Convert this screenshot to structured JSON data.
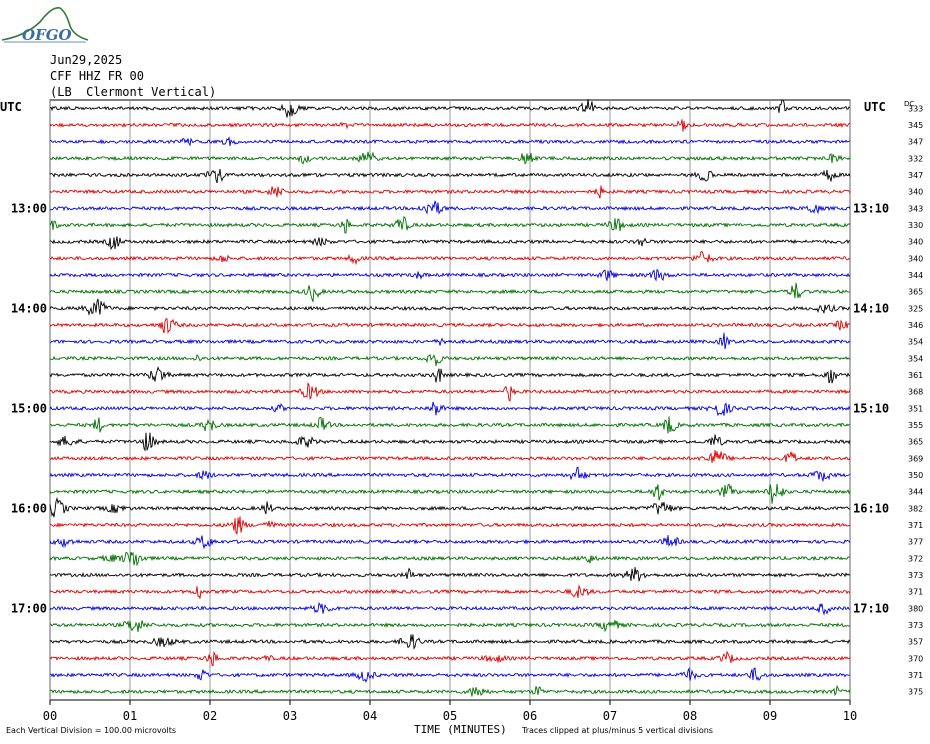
{
  "header": {
    "logo_text": "OFGO",
    "date": "Jun29,2025",
    "station": "CFF HHZ FR 00",
    "location": "(LB  Clermont Vertical)"
  },
  "left_label": "UTC",
  "right_label": "UTC",
  "dc_label": "DC",
  "footer": {
    "left_note": "Each Vertical Division =  100.00 microvolts",
    "x_title": "TIME (MINUTES)",
    "right_note": "Traces clipped at plus/minus 5 vertical divisions"
  },
  "chart_data": {
    "type": "line",
    "title": "",
    "xlabel": "TIME (MINUTES)",
    "x_ticks": [
      "00",
      "01",
      "02",
      "03",
      "04",
      "05",
      "06",
      "07",
      "08",
      "09",
      "10"
    ],
    "xlim": [
      0,
      10
    ],
    "grid": true,
    "trace_count": 36,
    "trace_colors": [
      "#000000",
      "#e00000",
      "#0000e0",
      "#007000"
    ],
    "left_hour_labels": [
      {
        "trace": 6,
        "label": "13:00"
      },
      {
        "trace": 12,
        "label": "14:00"
      },
      {
        "trace": 18,
        "label": "15:00"
      },
      {
        "trace": 24,
        "label": "16:00"
      },
      {
        "trace": 30,
        "label": "17:00"
      }
    ],
    "right_hour_labels": [
      {
        "trace": 6,
        "label": "13:10"
      },
      {
        "trace": 12,
        "label": "14:10"
      },
      {
        "trace": 18,
        "label": "15:10"
      },
      {
        "trace": 24,
        "label": "16:10"
      },
      {
        "trace": 30,
        "label": "17:10"
      }
    ],
    "dc_values": [
      "333",
      "345",
      "347",
      "332",
      "347",
      "340",
      "343",
      "330",
      "340",
      "340",
      "344",
      "365",
      "325",
      "346",
      "354",
      "354",
      "361",
      "368",
      "351",
      "355",
      "365",
      "369",
      "350",
      "344",
      "382",
      "371",
      "377",
      "372",
      "373",
      "371",
      "380",
      "373",
      "357",
      "370",
      "371",
      "375"
    ]
  }
}
